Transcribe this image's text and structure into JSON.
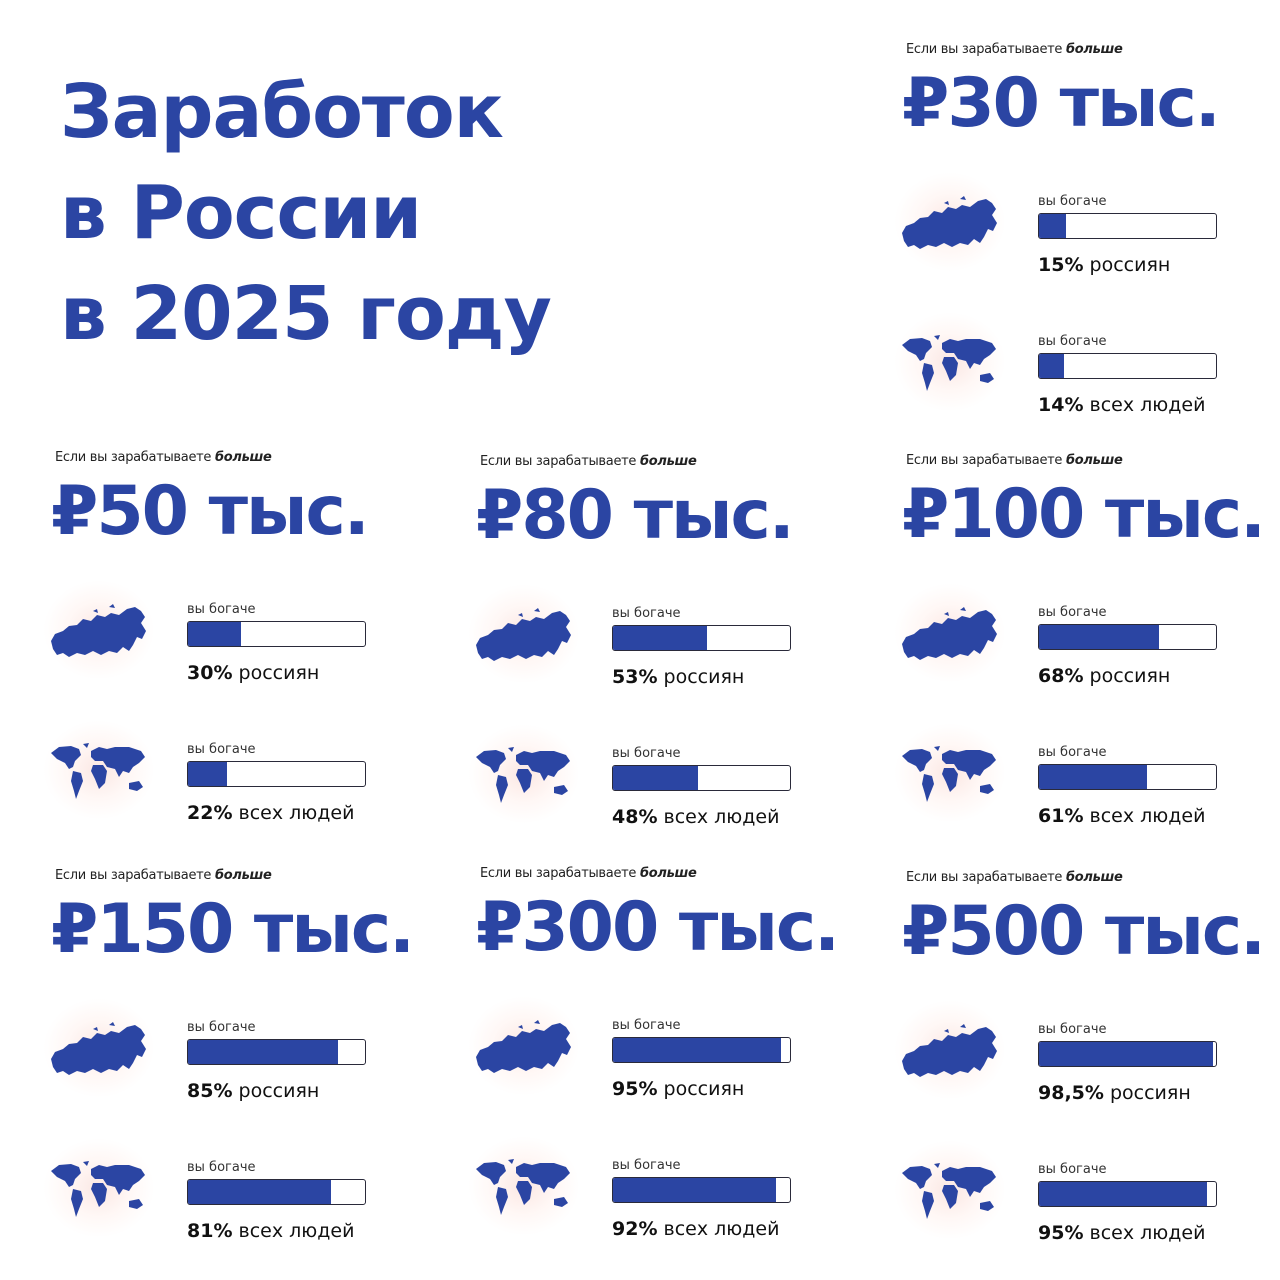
{
  "title": {
    "lines": [
      "Заработок",
      "в России",
      "в 2025 году"
    ]
  },
  "accent_color": "#2b45a3",
  "blocks": [
    {
      "header_prefix": "Если вы зарабатываете",
      "header_bold": "больше",
      "amount": "₽30 тыс.",
      "rows": [
        {
          "label": "вы богаче",
          "percent": 15,
          "percent_text": "15%",
          "suffix": "россиян",
          "icon": "russia-map"
        },
        {
          "label": "вы богаче",
          "percent": 14,
          "percent_text": "14%",
          "suffix": "всех людей",
          "icon": "world-map"
        }
      ]
    },
    {
      "header_prefix": "Если вы зарабатываете",
      "header_bold": "больше",
      "amount": "₽50 тыс.",
      "rows": [
        {
          "label": "вы богаче",
          "percent": 30,
          "percent_text": "30%",
          "suffix": "россиян",
          "icon": "russia-map"
        },
        {
          "label": "вы богаче",
          "percent": 22,
          "percent_text": "22%",
          "suffix": "всех людей",
          "icon": "world-map"
        }
      ]
    },
    {
      "header_prefix": "Если вы зарабатываете",
      "header_bold": "больше",
      "amount": "₽80 тыс.",
      "rows": [
        {
          "label": "вы богаче",
          "percent": 53,
          "percent_text": "53%",
          "suffix": "россиян",
          "icon": "russia-map"
        },
        {
          "label": "вы богаче",
          "percent": 48,
          "percent_text": "48%",
          "suffix": "всех людей",
          "icon": "world-map"
        }
      ]
    },
    {
      "header_prefix": "Если вы зарабатываете",
      "header_bold": "больше",
      "amount": "₽100 тыс.",
      "rows": [
        {
          "label": "вы богаче",
          "percent": 68,
          "percent_text": "68%",
          "suffix": "россиян",
          "icon": "russia-map"
        },
        {
          "label": "вы богаче",
          "percent": 61,
          "percent_text": "61%",
          "suffix": "всех людей",
          "icon": "world-map"
        }
      ]
    },
    {
      "header_prefix": "Если вы зарабатываете",
      "header_bold": "больше",
      "amount": "₽150 тыс.",
      "rows": [
        {
          "label": "вы богаче",
          "percent": 85,
          "percent_text": "85%",
          "suffix": "россиян",
          "icon": "russia-map"
        },
        {
          "label": "вы богаче",
          "percent": 81,
          "percent_text": "81%",
          "suffix": "всех людей",
          "icon": "world-map"
        }
      ]
    },
    {
      "header_prefix": "Если вы зарабатываете",
      "header_bold": "больше",
      "amount": "₽300 тыс.",
      "rows": [
        {
          "label": "вы богаче",
          "percent": 95,
          "percent_text": "95%",
          "suffix": "россиян",
          "icon": "russia-map"
        },
        {
          "label": "вы богаче",
          "percent": 92,
          "percent_text": "92%",
          "suffix": "всех людей",
          "icon": "world-map"
        }
      ]
    },
    {
      "header_prefix": "Если вы зарабатываете",
      "header_bold": "больше",
      "amount": "₽500 тыс.",
      "rows": [
        {
          "label": "вы богаче",
          "percent": 98.5,
          "percent_text": "98,5%",
          "suffix": "россиян",
          "icon": "russia-map"
        },
        {
          "label": "вы богаче",
          "percent": 95,
          "percent_text": "95%",
          "suffix": "всех людей",
          "icon": "world-map"
        }
      ]
    }
  ]
}
